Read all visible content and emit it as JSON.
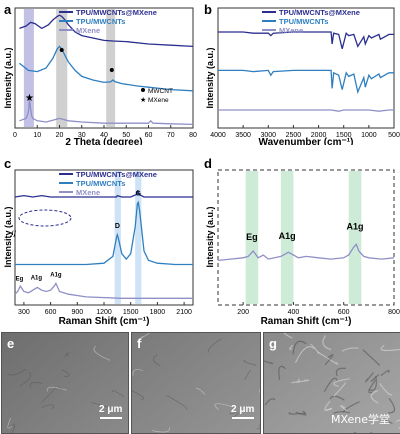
{
  "chart_data": [
    {
      "panel": "a",
      "type": "line",
      "xlabel": "2 Theta (degree)",
      "ylabel": "Intensity (a.u.)",
      "xlim": [
        0,
        80
      ],
      "xticks": [
        "0",
        "10",
        "20",
        "30",
        "40",
        "50",
        "60",
        "70",
        "80"
      ],
      "legend": [
        "TPU/MWCNTs@MXene",
        "TPU/MWCNTs",
        "MXene"
      ],
      "markers": [
        "MWCNT",
        "MXene"
      ],
      "series": [
        {
          "name": "TPU/MWCNTs@MXene",
          "color": "#2b2f8f",
          "x": [
            2,
            5,
            7,
            9,
            12,
            15,
            17,
            19,
            20,
            21,
            22,
            24,
            27,
            30,
            35,
            40,
            44,
            50,
            60,
            70,
            80
          ],
          "y": [
            0.83,
            0.85,
            0.88,
            0.87,
            0.83,
            0.86,
            0.9,
            0.93,
            0.94,
            0.93,
            0.91,
            0.86,
            0.8,
            0.77,
            0.75,
            0.73,
            0.725,
            0.72,
            0.7,
            0.69,
            0.68
          ]
        },
        {
          "name": "TPU/MWCNTs",
          "color": "#2f7fc0",
          "x": [
            2,
            6,
            10,
            14,
            17,
            19,
            20,
            21,
            22,
            24,
            27,
            30,
            35,
            40,
            43,
            44,
            45,
            48,
            55,
            60,
            70,
            80
          ],
          "y": [
            0.54,
            0.48,
            0.47,
            0.5,
            0.58,
            0.66,
            0.68,
            0.66,
            0.62,
            0.55,
            0.48,
            0.43,
            0.4,
            0.38,
            0.385,
            0.4,
            0.385,
            0.37,
            0.35,
            0.34,
            0.32,
            0.31
          ]
        },
        {
          "name": "MXene",
          "color": "#9090c8",
          "x": [
            2,
            5,
            6,
            6.5,
            7,
            7.5,
            8,
            10,
            14,
            18,
            20,
            24,
            30,
            40,
            50,
            60,
            61,
            62,
            70,
            80
          ],
          "y": [
            0.06,
            0.08,
            0.13,
            0.24,
            0.16,
            0.1,
            0.08,
            0.06,
            0.05,
            0.07,
            0.08,
            0.06,
            0.05,
            0.04,
            0.04,
            0.04,
            0.06,
            0.04,
            0.035,
            0.03
          ]
        }
      ]
    },
    {
      "panel": "b",
      "type": "line",
      "xlabel": "Wavenumber (cm⁻¹)",
      "ylabel": "Intensity (a.u.)",
      "xlim": [
        4000,
        500
      ],
      "xticks": [
        "4000",
        "3500",
        "3000",
        "2500",
        "2000",
        "1500",
        "1000",
        "500"
      ],
      "legend": [
        "TPU/MWCNTs@MXene",
        "TPU/MWCNTs",
        "MXene"
      ],
      "series": [
        {
          "name": "TPU/MWCNTs@MXene",
          "color": "#2b2f8f",
          "x": [
            4000,
            3500,
            3300,
            3000,
            2950,
            2900,
            2500,
            2000,
            1750,
            1730,
            1700,
            1600,
            1530,
            1450,
            1400,
            1300,
            1220,
            1100,
            1070,
            1000,
            950,
            800,
            770,
            600,
            500
          ],
          "y": [
            0.8,
            0.8,
            0.79,
            0.79,
            0.77,
            0.79,
            0.8,
            0.8,
            0.8,
            0.7,
            0.79,
            0.78,
            0.66,
            0.79,
            0.77,
            0.78,
            0.68,
            0.76,
            0.7,
            0.77,
            0.75,
            0.78,
            0.74,
            0.78,
            0.78
          ]
        },
        {
          "name": "TPU/MWCNTs",
          "color": "#2f7fc0",
          "x": [
            4000,
            3500,
            3300,
            3000,
            2950,
            2900,
            2500,
            2000,
            1750,
            1730,
            1700,
            1600,
            1530,
            1450,
            1400,
            1300,
            1220,
            1100,
            1070,
            1000,
            950,
            800,
            770,
            600,
            500
          ],
          "y": [
            0.48,
            0.48,
            0.47,
            0.48,
            0.44,
            0.47,
            0.48,
            0.48,
            0.48,
            0.33,
            0.46,
            0.44,
            0.32,
            0.46,
            0.43,
            0.45,
            0.3,
            0.42,
            0.34,
            0.44,
            0.41,
            0.45,
            0.42,
            0.46,
            0.46
          ]
        },
        {
          "name": "MXene",
          "color": "#9090c8",
          "x": [
            4000,
            3500,
            3000,
            2500,
            2000,
            1750,
            1600,
            1500,
            1400,
            1000,
            800,
            600,
            500
          ],
          "y": [
            0.15,
            0.15,
            0.15,
            0.15,
            0.15,
            0.15,
            0.14,
            0.15,
            0.15,
            0.15,
            0.14,
            0.15,
            0.15
          ]
        }
      ]
    },
    {
      "panel": "c",
      "type": "line",
      "xlabel": "Raman Shift (cm⁻¹)",
      "ylabel": "Intensity (a.u.)",
      "xlim": [
        200,
        2200
      ],
      "xticks": [
        "300",
        "600",
        "900",
        "1200",
        "1500",
        "1800",
        "2100"
      ],
      "legend": [
        "TPU/MWCNTs@MXene",
        "TPU/MWCNTs",
        "MXene"
      ],
      "annotations": [
        "D",
        "G",
        "Eg",
        "A1g",
        "A1g"
      ],
      "series": [
        {
          "name": "TPU/MWCNTs@MXene",
          "color": "#2b2f8f",
          "x": [
            200,
            300,
            400,
            500,
            600,
            700,
            800,
            1000,
            1200,
            1340,
            1350,
            1400,
            1500,
            1570,
            1580,
            1590,
            1650,
            1800,
            2000,
            2200
          ],
          "y": [
            0.8,
            0.81,
            0.8,
            0.81,
            0.8,
            0.8,
            0.8,
            0.8,
            0.8,
            0.8,
            0.81,
            0.8,
            0.8,
            0.82,
            0.85,
            0.82,
            0.8,
            0.8,
            0.8,
            0.8
          ]
        },
        {
          "name": "TPU/MWCNTs",
          "color": "#2f7fc0",
          "x": [
            200,
            600,
            1000,
            1200,
            1300,
            1340,
            1350,
            1360,
            1400,
            1450,
            1500,
            1550,
            1575,
            1585,
            1600,
            1650,
            1700,
            1800,
            2000,
            2200
          ],
          "y": [
            0.3,
            0.3,
            0.3,
            0.31,
            0.36,
            0.5,
            0.52,
            0.5,
            0.38,
            0.34,
            0.38,
            0.58,
            0.75,
            0.76,
            0.7,
            0.4,
            0.33,
            0.31,
            0.3,
            0.3
          ]
        },
        {
          "name": "MXene",
          "color": "#9090c8",
          "x": [
            200,
            230,
            260,
            300,
            350,
            400,
            450,
            500,
            550,
            600,
            640,
            660,
            680,
            700,
            800,
            1000,
            1400,
            1800,
            2200
          ],
          "y": [
            0.08,
            0.1,
            0.14,
            0.1,
            0.09,
            0.11,
            0.13,
            0.11,
            0.1,
            0.11,
            0.14,
            0.16,
            0.13,
            0.1,
            0.08,
            0.06,
            0.05,
            0.05,
            0.05
          ]
        }
      ]
    },
    {
      "panel": "d",
      "type": "line",
      "xlabel": "Raman Shift (cm⁻¹)",
      "ylabel": "Intensity (a.u.)",
      "xlim": [
        100,
        800
      ],
      "xticks": [
        "200",
        "400",
        "600",
        "800"
      ],
      "annotations": [
        "Eg",
        "A1g",
        "A1g"
      ],
      "series": [
        {
          "name": "MXene",
          "color": "#9090c8",
          "x": [
            100,
            150,
            200,
            220,
            240,
            260,
            280,
            300,
            350,
            380,
            400,
            420,
            450,
            500,
            550,
            600,
            620,
            640,
            650,
            660,
            680,
            700,
            750,
            800
          ],
          "y": [
            0.33,
            0.34,
            0.35,
            0.36,
            0.4,
            0.35,
            0.37,
            0.34,
            0.36,
            0.39,
            0.37,
            0.35,
            0.36,
            0.35,
            0.34,
            0.35,
            0.37,
            0.43,
            0.45,
            0.4,
            0.36,
            0.35,
            0.34,
            0.35
          ]
        }
      ]
    }
  ],
  "sem": [
    {
      "label": "e",
      "scale": "2 μm",
      "tone": [
        "#6e6e6e",
        "#8a8a8a"
      ]
    },
    {
      "label": "f",
      "scale": "2 μm",
      "tone": [
        "#7a7a7a",
        "#959595"
      ]
    },
    {
      "label": "g",
      "scale": "",
      "tone": [
        "#8a8a8a",
        "#a7a7a7"
      ],
      "watermark": "MXene学堂"
    }
  ]
}
